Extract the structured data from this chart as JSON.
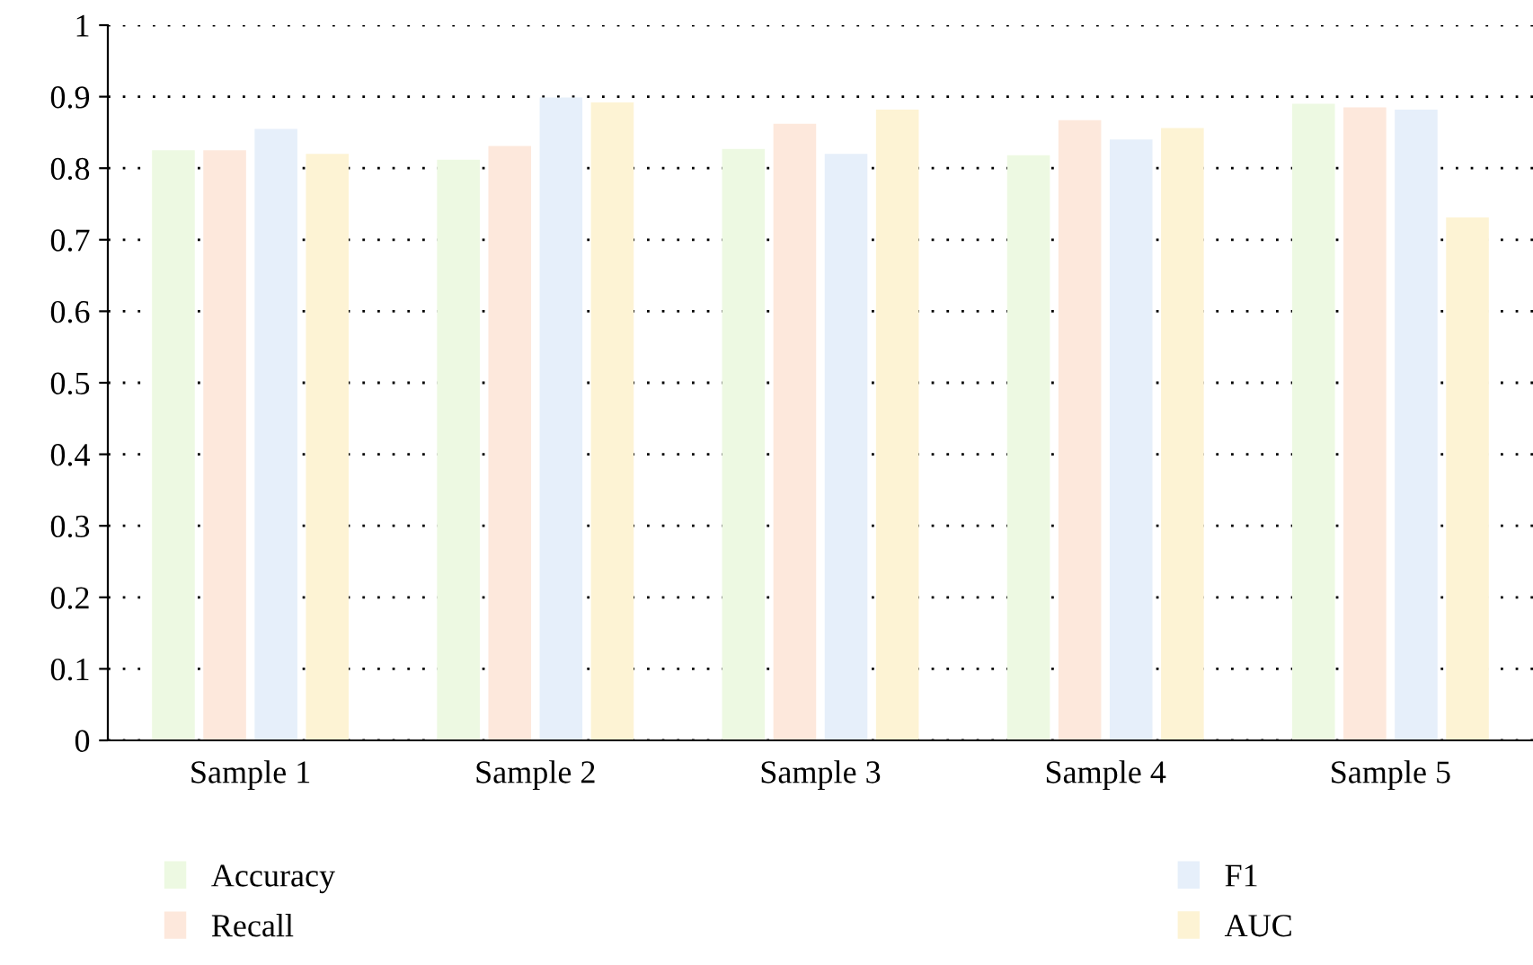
{
  "chart_data": {
    "type": "bar",
    "categories": [
      "Sample 1",
      "Sample 2",
      "Sample 3",
      "Sample 4",
      "Sample 5"
    ],
    "series": [
      {
        "name": "Accuracy",
        "color": "#edf9e2",
        "values": [
          0.825,
          0.812,
          0.827,
          0.818,
          0.89
        ]
      },
      {
        "name": "Recall",
        "color": "#fde8dc",
        "values": [
          0.825,
          0.831,
          0.862,
          0.867,
          0.885
        ]
      },
      {
        "name": "F1",
        "color": "#e6effa",
        "values": [
          0.855,
          0.899,
          0.82,
          0.84,
          0.882
        ]
      },
      {
        "name": "AUC",
        "color": "#fdf3d4",
        "values": [
          0.82,
          0.892,
          0.882,
          0.856,
          0.731
        ]
      }
    ],
    "ylim": [
      0,
      1
    ],
    "yticks": [
      0,
      0.1,
      0.2,
      0.3,
      0.4,
      0.5,
      0.6,
      0.7,
      0.8,
      0.9,
      1
    ],
    "grid": "y",
    "legend": "bottom"
  }
}
